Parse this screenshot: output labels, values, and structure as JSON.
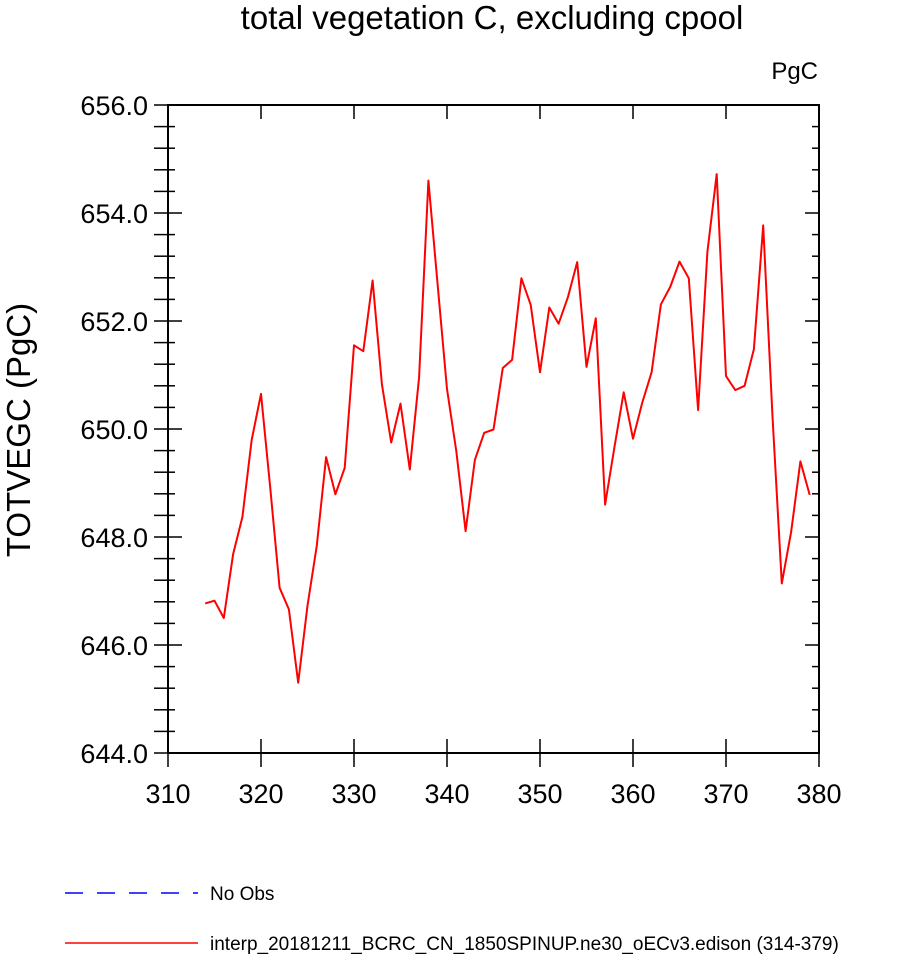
{
  "chart_data": {
    "type": "line",
    "title": "total vegetation C, excluding cpool",
    "units": "PgC",
    "xlabel": "",
    "ylabel": "TOTVEGC  (PgC)",
    "xlim": [
      310,
      380
    ],
    "ylim": [
      644.0,
      656.0
    ],
    "xticks": [
      310,
      320,
      330,
      340,
      350,
      360,
      370,
      380
    ],
    "xtick_labels": [
      "310",
      "320",
      "330",
      "340",
      "350",
      "360",
      "370",
      "380"
    ],
    "yticks": [
      644,
      646,
      648,
      650,
      652,
      654,
      656
    ],
    "ytick_labels": [
      "644.0",
      "646.0",
      "648.0",
      "650.0",
      "652.0",
      "654.0",
      "656.0"
    ],
    "grid": false,
    "legend_position": "bottom",
    "series": [
      {
        "name": "No Obs",
        "color": "#0000ff",
        "style": "dashed",
        "x": [],
        "y": []
      },
      {
        "name": "interp_20181211_BCRC_CN_1850SPINUP.ne30_oECv3.edison (314-379)",
        "color": "#ff0000",
        "style": "solid",
        "x": [
          314,
          315,
          316,
          317,
          318,
          319,
          320,
          321,
          322,
          323,
          324,
          325,
          326,
          327,
          328,
          329,
          330,
          331,
          332,
          333,
          334,
          335,
          336,
          337,
          338,
          339,
          340,
          341,
          342,
          343,
          344,
          345,
          346,
          347,
          348,
          349,
          350,
          351,
          352,
          353,
          354,
          355,
          356,
          357,
          358,
          359,
          360,
          361,
          362,
          363,
          364,
          365,
          366,
          367,
          368,
          369,
          370,
          371,
          372,
          373,
          374,
          375,
          376,
          377,
          378,
          379
        ],
        "y": [
          646.77,
          646.82,
          646.5,
          647.68,
          648.37,
          649.8,
          650.65,
          648.9,
          647.06,
          646.66,
          645.3,
          646.73,
          647.84,
          649.48,
          648.79,
          649.28,
          651.55,
          651.44,
          652.75,
          650.83,
          649.75,
          650.47,
          649.25,
          650.96,
          654.6,
          652.66,
          650.74,
          649.59,
          648.11,
          649.43,
          649.93,
          649.99,
          651.13,
          651.28,
          652.79,
          652.3,
          651.05,
          652.25,
          651.95,
          652.44,
          653.09,
          651.15,
          652.05,
          648.6,
          649.66,
          650.68,
          649.82,
          650.49,
          651.05,
          652.31,
          652.63,
          653.1,
          652.79,
          650.35,
          653.28,
          654.72,
          650.98,
          650.72,
          650.8,
          651.48,
          653.77,
          650.23,
          647.14,
          648.09,
          649.4,
          648.78
        ]
      }
    ]
  }
}
